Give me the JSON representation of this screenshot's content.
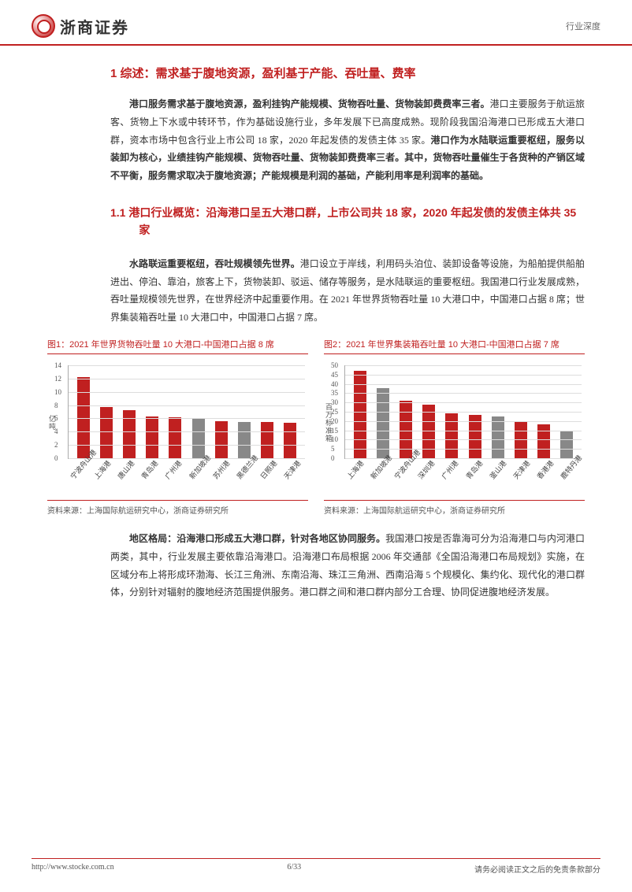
{
  "header": {
    "company": "浙商证券",
    "doc_type": "行业深度"
  },
  "section1": {
    "title": "1 综述：需求基于腹地资源，盈利基于产能、吞吐量、费率",
    "para_bold_lead": "港口服务需求基于腹地资源，盈利挂钩产能规模、货物吞吐量、货物装卸费费率三者。",
    "para_middle": "港口主要服务于航运旅客、货物上下水或中转环节，作为基础设施行业，多年发展下已高度成熟。现阶段我国沿海港口已形成五大港口群，资本市场中包含行业上市公司 18 家，2020 年起发债的发债主体 35 家。",
    "para_bold_tail": "港口作为水陆联运重要枢纽，服务以装卸为核心，业绩挂钩产能规模、货物吞吐量、货物装卸费费率三者。其中，货物吞吐量催生于各货种的产销区域不平衡，服务需求取决于腹地资源；产能规模是利润的基础，产能利用率是利润率的基础。"
  },
  "section11": {
    "title": "1.1 港口行业概览：沿海港口呈五大港口群，上市公司共 18 家，2020 年起发债的发债主体共 35 家",
    "para_bold_lead": "水路联运重要枢纽，吞吐规模领先世界。",
    "para_rest": "港口设立于岸线，利用码头泊位、装卸设备等设施，为船舶提供船舶进出、停泊、靠泊，旅客上下，货物装卸、驳运、储存等服务，是水陆联运的重要枢纽。我国港口行业发展成熟，吞吐量规模领先世界，在世界经济中起重要作用。在 2021 年世界货物吞吐量 10 大港口中，中国港口占据 8 席；世界集装箱吞吐量 10 大港口中，中国港口占据 7 席。"
  },
  "chart1": {
    "title": "图1：2021 年世界货物吞吐量 10 大港口-中国港口占据 8 席",
    "type": "bar",
    "ylabel": "亿吨",
    "ymax": 14,
    "yticks": [
      0,
      2,
      4,
      6,
      8,
      10,
      12,
      14
    ],
    "categories": [
      "宁波舟山港",
      "上海港",
      "唐山港",
      "青岛港",
      "广州港",
      "新加坡港",
      "苏州港",
      "黑德兰港",
      "日照港",
      "天津港"
    ],
    "values": [
      12.2,
      7.7,
      7.2,
      6.3,
      6.2,
      6.0,
      5.6,
      5.5,
      5.4,
      5.3
    ],
    "china_flags": [
      true,
      true,
      true,
      true,
      true,
      false,
      true,
      false,
      true,
      true
    ],
    "color_china": "#c02020",
    "color_other": "#888888",
    "grid_color": "#dddddd",
    "source": "资料来源：上海国际航运研究中心，浙商证券研究所"
  },
  "chart2": {
    "title": "图2：2021 年世界集装箱吞吐量 10 大港口-中国港口占据 7 席",
    "type": "bar",
    "ylabel": "百万标准箱",
    "ymax": 50,
    "yticks": [
      0,
      5,
      10,
      15,
      20,
      25,
      30,
      35,
      40,
      45,
      50
    ],
    "categories": [
      "上海港",
      "新加坡港",
      "宁波舟山港",
      "深圳港",
      "广州港",
      "青岛港",
      "釜山港",
      "天津港",
      "香港港",
      "鹿特丹港"
    ],
    "values": [
      47,
      37.5,
      31,
      28.8,
      24,
      23.5,
      22.5,
      20,
      18,
      15
    ],
    "china_flags": [
      true,
      false,
      true,
      true,
      true,
      true,
      false,
      true,
      true,
      false
    ],
    "color_china": "#c02020",
    "color_other": "#888888",
    "grid_color": "#dddddd",
    "source": "资料来源：上海国际航运研究中心，浙商证券研究所"
  },
  "section_region": {
    "bold_lead": "地区格局：沿海港口形成五大港口群，针对各地区协同服务。",
    "rest": "我国港口按是否靠海可分为沿海港口与内河港口两类，其中，行业发展主要依靠沿海港口。沿海港口布局根据 2006 年交通部《全国沿海港口布局规划》实施，在区域分布上将形成环渤海、长江三角洲、东南沿海、珠江三角洲、西南沿海 5 个规模化、集约化、现代化的港口群体，分别针对辐射的腹地经济范围提供服务。港口群之间和港口群内部分工合理、协同促进腹地经济发展。"
  },
  "footer": {
    "url": "http://www.stocke.com.cn",
    "page": "6/33",
    "disclaimer": "请务必阅读正文之后的免责条款部分"
  }
}
